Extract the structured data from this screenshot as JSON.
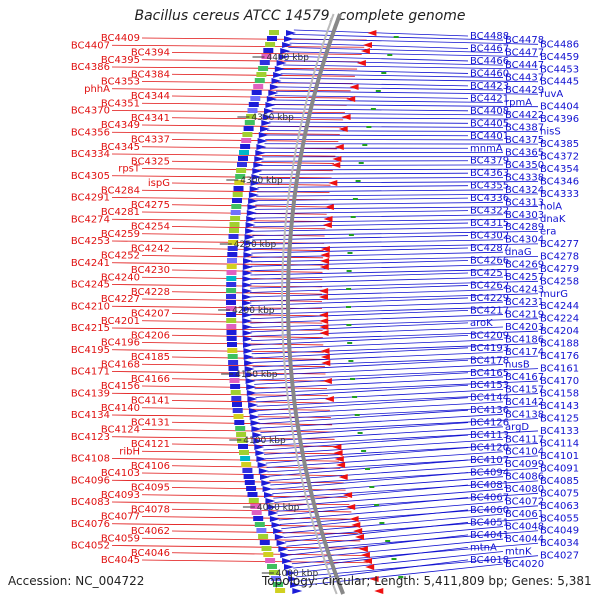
{
  "title": "Bacillus cereus ATCC 14579, complete genome",
  "footer": {
    "accession": "Accession: NC_004722",
    "topology": "Topology: circular; Length: 5,411,809 bp; Genes: 5,381"
  },
  "colors": {
    "left_labels": "#e01010",
    "right_labels": "#1010d0",
    "backbone": "#888888",
    "tick_dots": "#20a020"
  },
  "ticks": [
    "4400 kbp",
    "4350 kbp",
    "4300 kbp",
    "4250 kbp",
    "4200 kbp",
    "4150 kbp",
    "4100 kbp",
    "4050 kbp",
    "4000 kbp"
  ],
  "left_labels": [
    "BC4409",
    "BC4407",
    "BC4394",
    "BC4395",
    "BC4386",
    "BC4384",
    "BC4353",
    "phhA",
    "BC4344",
    "BC4351",
    "BC4370",
    "BC4341",
    "BC4349",
    "BC4356",
    "BC4337",
    "BC4345",
    "BC4334",
    "BC4325",
    "rpsT",
    "BC4305",
    "ispG",
    "BC4284",
    "BC4291",
    "BC4275",
    "BC4281",
    "BC4274",
    "BC4254",
    "BC4259",
    "BC4253",
    "BC4242",
    "BC4252",
    "BC4241",
    "BC4230",
    "BC4240",
    "BC4245",
    "BC4228",
    "BC4227",
    "BC4210",
    "BC4207",
    "BC4201",
    "BC4215",
    "BC4206",
    "BC4196",
    "BC4195",
    "BC4185",
    "BC4168",
    "BC4171",
    "BC4166",
    "BC4156",
    "BC4139",
    "BC4141",
    "BC4140",
    "BC4134",
    "BC4131",
    "BC4124",
    "BC4123",
    "BC4121",
    "ribH",
    "BC4108",
    "BC4106",
    "BC4103",
    "BC4096",
    "BC4095",
    "BC4093",
    "BC4083",
    "BC4078",
    "BC4077",
    "BC4076",
    "BC4062",
    "BC4059",
    "BC4052",
    "BC4046",
    "BC4045"
  ],
  "right_labels": [
    "BC4488",
    "BC4478",
    "BC4486",
    "BC4467",
    "BC4477",
    "BC4459",
    "BC4466",
    "BC4447",
    "BC4453",
    "BC4460",
    "BC4437",
    "BC4445",
    "BC4423",
    "BC4429",
    "ruvA",
    "BC4421",
    "rpmA",
    "BC4404",
    "BC4408",
    "BC4422",
    "BC4396",
    "BC4405",
    "BC4387",
    "hisS",
    "BC4401",
    "BC4375",
    "BC4385",
    "mnmA",
    "BC4365",
    "BC4372",
    "BC4379",
    "BC4350",
    "BC4354",
    "BC4363",
    "BC4338",
    "BC4346",
    "BC4355",
    "BC4324",
    "BC4333",
    "BC4336",
    "BC4313",
    "holA",
    "BC4322",
    "BC4303",
    "dnaK",
    "BC4315",
    "BC4289",
    "era",
    "BC4302",
    "BC4304",
    "BC4277",
    "BC4287",
    "dnaG",
    "BC4278",
    "BC4266",
    "BC4269",
    "BC4279",
    "BC4251",
    "BC4257",
    "BC4258",
    "BC4262",
    "BC4243",
    "murG",
    "BC4229",
    "BC4231",
    "BC4244",
    "BC4217",
    "BC4219",
    "BC4224",
    "aroK",
    "BC4203",
    "BC4204",
    "BC4209",
    "BC4186",
    "BC4188",
    "BC4193",
    "BC4174",
    "BC4176",
    "BC4178",
    "nusB",
    "BC4161",
    "BC4165",
    "BC4167",
    "BC4170",
    "BC4153",
    "BC4157",
    "BC4158",
    "BC4144",
    "BC4142",
    "BC4143",
    "BC4136",
    "BC4138",
    "BC4125",
    "BC4126",
    "argD",
    "BC4133",
    "BC4113",
    "BC4117",
    "BC4114",
    "BC4120",
    "BC4104",
    "BC4101",
    "BC4107",
    "BC4099",
    "BC4091",
    "BC4094",
    "BC4086",
    "BC4085",
    "BC4081",
    "BC4080",
    "BC4075",
    "BC4067",
    "BC4072",
    "BC4063",
    "BC4060",
    "BC4061",
    "BC4055",
    "BC4051",
    "BC4048",
    "BC4049",
    "BC4041",
    "BC4044",
    "BC4034",
    "mtnA",
    "mtnK",
    "BC4027",
    "BC4018",
    "BC4020"
  ]
}
